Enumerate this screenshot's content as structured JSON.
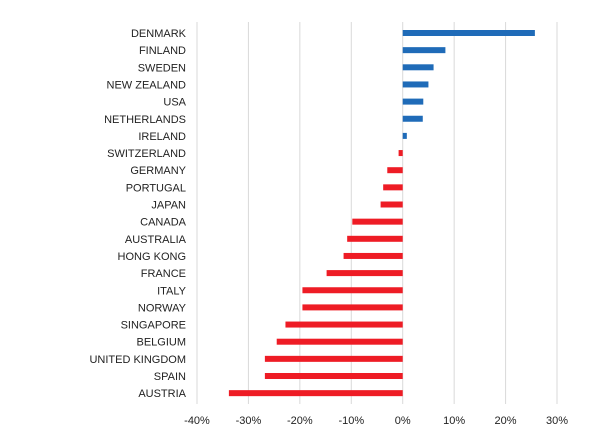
{
  "chart_data": {
    "type": "bar",
    "orientation": "horizontal",
    "categories": [
      "DENMARK",
      "FINLAND",
      "SWEDEN",
      "NEW ZEALAND",
      "USA",
      "NETHERLANDS",
      "IRELAND",
      "SWITZERLAND",
      "GERMANY",
      "PORTUGAL",
      "JAPAN",
      "CANADA",
      "AUSTRALIA",
      "HONG KONG",
      "FRANCE",
      "ITALY",
      "NORWAY",
      "SINGAPORE",
      "BELGIUM",
      "UNITED KINGDOM",
      "SPAIN",
      "AUSTRIA"
    ],
    "values": [
      25.7,
      8.3,
      6.0,
      5.0,
      4.0,
      3.9,
      0.8,
      -0.8,
      -3.0,
      -3.8,
      -4.3,
      -9.8,
      -10.8,
      -11.5,
      -14.8,
      -19.5,
      -19.5,
      -22.8,
      -24.5,
      -26.8,
      -26.8,
      -33.8
    ],
    "xlim": [
      -40,
      30
    ],
    "xticks": [
      -40,
      -30,
      -20,
      -10,
      0,
      10,
      20,
      30
    ],
    "xtick_labels": [
      "-40%",
      "-30%",
      "-20%",
      "-10%",
      "0%",
      "10%",
      "20%",
      "30%"
    ],
    "grid": "vertical",
    "legend": "none",
    "colors": {
      "positive": "#1f6bb8",
      "negative": "#ee1c25"
    },
    "title": "",
    "xlabel": "",
    "ylabel": ""
  }
}
